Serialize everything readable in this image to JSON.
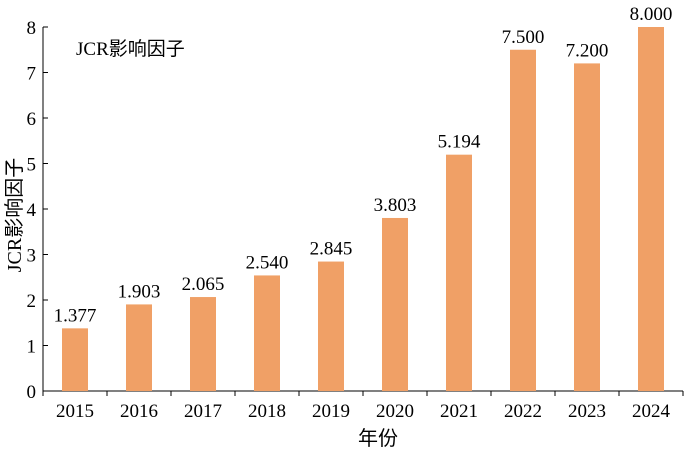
{
  "chart_data": {
    "type": "bar",
    "legend": "JCR影响因子",
    "legend_position": "top-left",
    "xlabel": "年份",
    "ylabel": "JCR影响因子",
    "categories": [
      "2015",
      "2016",
      "2017",
      "2018",
      "2019",
      "2020",
      "2021",
      "2022",
      "2023",
      "2024"
    ],
    "values": [
      1.377,
      1.903,
      2.065,
      2.54,
      2.845,
      3.803,
      5.194,
      7.5,
      7.2,
      8.0
    ],
    "value_labels": [
      "1.377",
      "1.903",
      "2.065",
      "2.540",
      "2.845",
      "3.803",
      "5.194",
      "7.500",
      "7.200",
      "8.000"
    ],
    "ylim": [
      0,
      8
    ],
    "yticks": [
      "0",
      "1",
      "2",
      "3",
      "4",
      "5",
      "6",
      "7",
      "8"
    ],
    "grid": false,
    "bar_color": "#f0a066"
  }
}
